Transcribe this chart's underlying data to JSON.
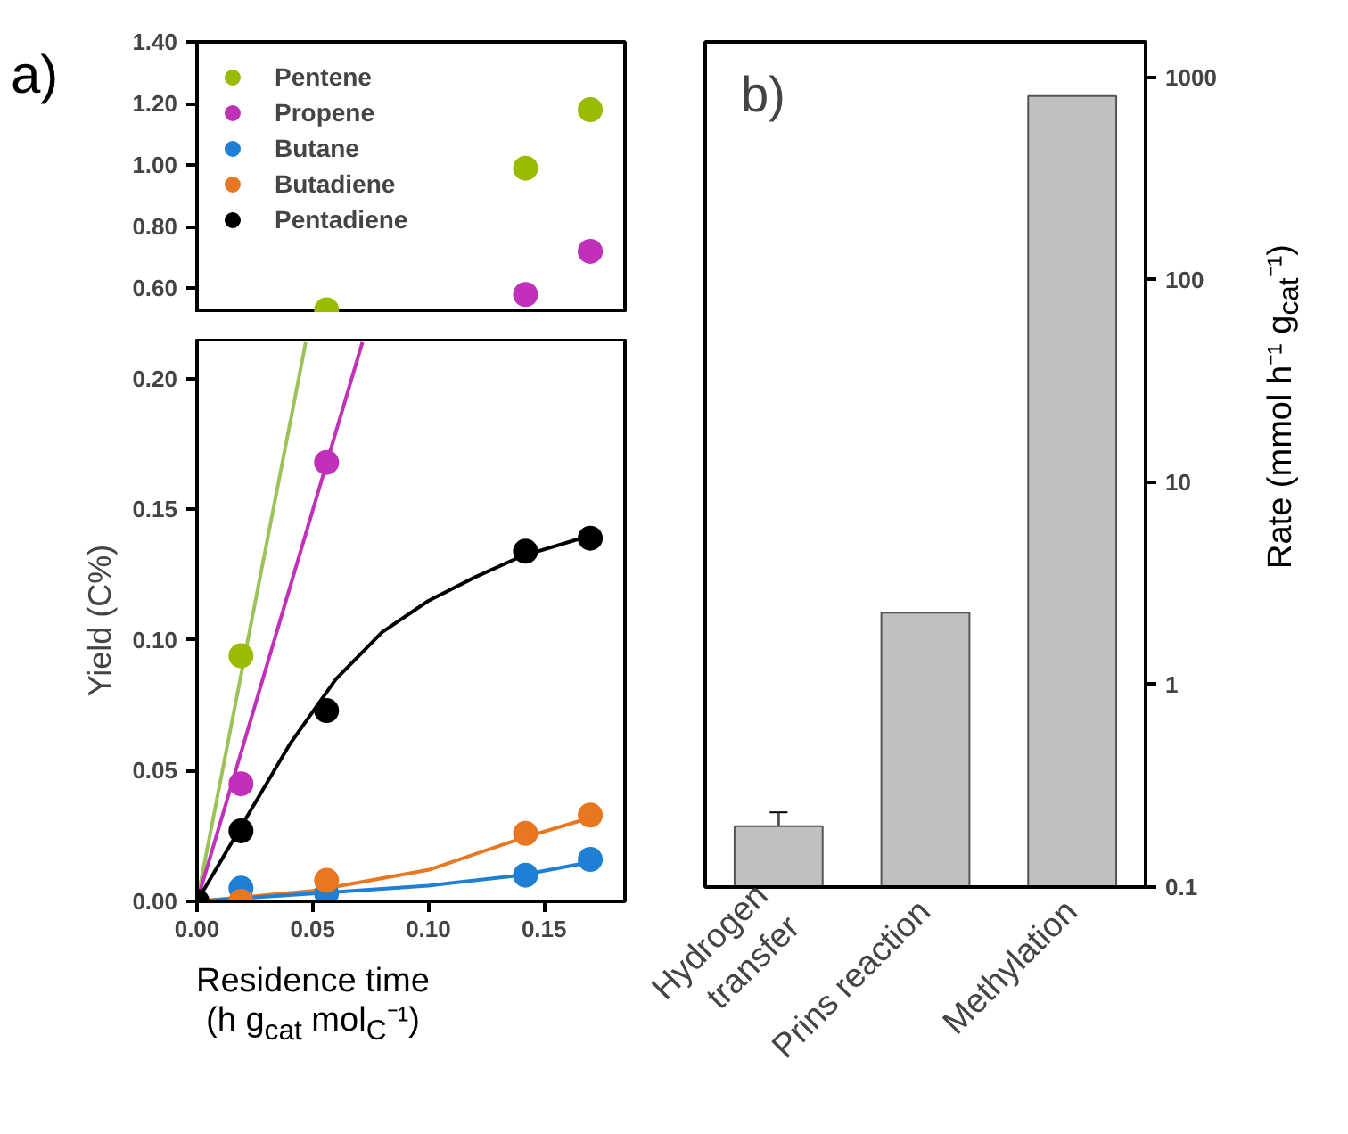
{
  "chart_data": [
    {
      "type": "scatter",
      "marker": "circle",
      "legend": "top left",
      "tick_labels": "y",
      "annotations": [
        "a)"
      ],
      "xlim": [
        0,
        0.185
      ],
      "ylim": [
        0.52,
        1.4
      ],
      "yticks": [
        {
          "value": 0.6,
          "label": "0.60"
        },
        {
          "value": 0.8,
          "label": "0.80"
        },
        {
          "value": 1.0,
          "label": "1.00"
        },
        {
          "value": 1.2,
          "label": "1.20"
        },
        {
          "value": 1.4,
          "label": "1.40"
        }
      ],
      "x": [
        0.056,
        0.142,
        0.17
      ],
      "series": [
        {
          "name": "Pentene",
          "color": "#99bb00",
          "values": [
            0.53,
            0.99,
            1.18
          ]
        },
        {
          "name": "Propene",
          "color": "#c030b8",
          "values": [
            null,
            0.58,
            0.72
          ]
        },
        {
          "name": "Butane",
          "color": "#1e7fd4",
          "values": [
            null,
            null,
            null
          ]
        },
        {
          "name": "Butadiene",
          "color": "#e87722",
          "values": [
            null,
            null,
            null
          ]
        },
        {
          "name": "Pentadiene",
          "color": "#000000",
          "values": [
            null,
            null,
            null
          ]
        }
      ]
    },
    {
      "type": "scatter",
      "marker": "circle",
      "ylabel": "Yield (C%)",
      "xlabel": "Residence time\n(h g$_{cat}$ mol$_{C}$⁻¹)",
      "xlim": [
        0,
        0.185
      ],
      "ylim": [
        0,
        0.215
      ],
      "xticks": [
        {
          "value": 0,
          "label": "0.00"
        },
        {
          "value": 0.05,
          "label": "0.05"
        },
        {
          "value": 0.1,
          "label": "0.10"
        },
        {
          "value": 0.15,
          "label": "0.15"
        }
      ],
      "yticks": [
        {
          "value": 0,
          "label": "0.00"
        },
        {
          "value": 0.05,
          "label": "0.05"
        },
        {
          "value": 0.1,
          "label": "0.10"
        },
        {
          "value": 0.15,
          "label": "0.15"
        },
        {
          "value": 0.2,
          "label": "0.20"
        }
      ],
      "x": [
        0,
        0.019,
        0.056,
        0.142,
        0.17
      ],
      "series": [
        {
          "type": "line",
          "marker": "none",
          "color": "#9cc25a",
          "x": [
            0,
            0.047
          ],
          "values": [
            0,
            0.214
          ]
        },
        {
          "type": "line",
          "marker": "none",
          "color": "#c030b8",
          "x": [
            0,
            0.0715
          ],
          "values": [
            0,
            0.214
          ]
        },
        {
          "type": "line",
          "marker": "none",
          "color": "#000000",
          "x": [
            0,
            0.02,
            0.04,
            0.06,
            0.08,
            0.1,
            0.12,
            0.14,
            0.17
          ],
          "values": [
            0,
            0.03,
            0.06,
            0.085,
            0.103,
            0.115,
            0.124,
            0.132,
            0.14
          ]
        },
        {
          "type": "line",
          "marker": "none",
          "color": "#e87722",
          "x": [
            0,
            0.05,
            0.1,
            0.14,
            0.17
          ],
          "values": [
            0,
            0.004,
            0.012,
            0.024,
            0.032
          ]
        },
        {
          "type": "line",
          "marker": "none",
          "color": "#1e7fd4",
          "x": [
            0,
            0.05,
            0.1,
            0.14,
            0.17
          ],
          "values": [
            0,
            0.003,
            0.006,
            0.01,
            0.015
          ]
        },
        {
          "color": "#99bb00",
          "values": [
            null,
            0.094,
            null,
            null,
            null
          ]
        },
        {
          "color": "#c030b8",
          "values": [
            null,
            0.045,
            0.168,
            null,
            null
          ]
        },
        {
          "color": "#1e7fd4",
          "values": [
            null,
            0.005,
            0.003,
            0.01,
            0.016
          ]
        },
        {
          "color": "#e87722",
          "values": [
            null,
            0.0,
            0.008,
            0.026,
            0.033
          ]
        },
        {
          "color": "#000000",
          "values": [
            0,
            0.027,
            0.073,
            0.134,
            0.139
          ]
        }
      ]
    },
    {
      "type": "bar",
      "annotations": [
        "b)"
      ],
      "log": "y2",
      "y2label": "Rate (mmol h⁻¹ g$_{cat}$⁻¹)",
      "categories": [
        "Hydrogen\ntransfer",
        "Prins reaction",
        "Methylation"
      ],
      "y2lim": [
        0.1,
        1500
      ],
      "y2ticks": [
        0.1,
        1,
        10,
        100,
        1000
      ],
      "series": [
        {
          "axis": "y2",
          "color": "#c0c0c0",
          "values": [
            0.2,
            2.27,
            810
          ],
          "errors": [
            [
              0.2,
              0.234
            ],
            null,
            null
          ]
        }
      ]
    }
  ]
}
